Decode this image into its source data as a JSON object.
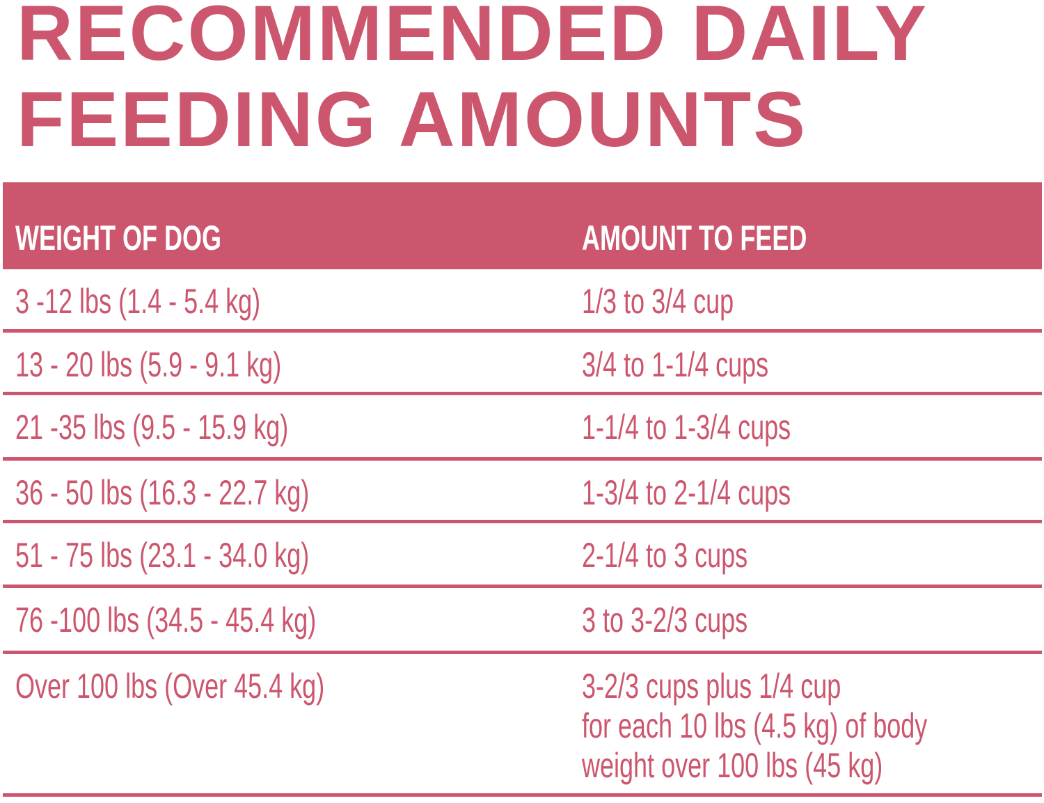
{
  "title": {
    "line1": "RECOMMENDED DAILY",
    "line2": "FEEDING AMOUNTS"
  },
  "table": {
    "headers": [
      "WEIGHT OF DOG",
      "AMOUNT TO FEED"
    ],
    "rows": [
      {
        "weight": "3 -12 lbs (1.4 - 5.4 kg)",
        "amount": [
          "1/3 to 3/4 cup"
        ]
      },
      {
        "weight": "13 - 20 lbs (5.9 - 9.1 kg)",
        "amount": [
          "3/4 to 1-1/4 cups"
        ]
      },
      {
        "weight": "21 -35 lbs (9.5 - 15.9 kg)",
        "amount": [
          "1-1/4 to 1-3/4 cups"
        ]
      },
      {
        "weight": "36 - 50 lbs (16.3 - 22.7 kg)",
        "amount": [
          "1-3/4 to 2-1/4 cups"
        ]
      },
      {
        "weight": "51 - 75 lbs (23.1 - 34.0 kg)",
        "amount": [
          "2-1/4 to 3 cups"
        ]
      },
      {
        "weight": "76 -100 lbs (34.5 - 45.4 kg)",
        "amount": [
          "3 to 3-2/3 cups"
        ]
      },
      {
        "weight": "Over 100 lbs (Over 45.4 kg)",
        "amount": [
          "3-2/3 cups plus 1/4 cup",
          "for each 10 lbs (4.5 kg) of body",
          "weight over 100 lbs (45 kg)"
        ]
      }
    ]
  },
  "colors": {
    "accent": "#cc566d",
    "background": "#ffffff",
    "header_text": "#ffffff"
  }
}
